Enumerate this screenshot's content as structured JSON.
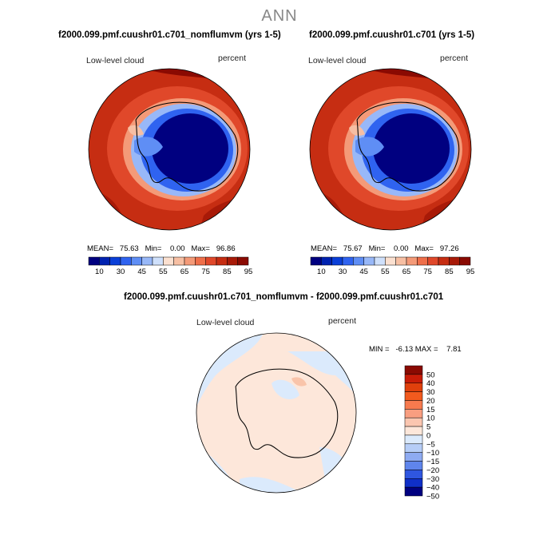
{
  "main_title": "ANN",
  "panels": [
    {
      "title": "f2000.099.pmf.cuushr01.c701_nomflumvm (yrs 1-5)",
      "variable": "Low-level cloud",
      "units": "percent",
      "stats_text": "MEAN=   75.63   Min=    0.00   Max=   96.86",
      "colorbar_labels": [
        "10",
        "30",
        "45",
        "55",
        "65",
        "75",
        "85",
        "95"
      ]
    },
    {
      "title": "f2000.099.pmf.cuushr01.c701 (yrs 1-5)",
      "variable": "Low-level cloud",
      "units": "percent",
      "stats_text": "MEAN=   75.67   Min=    0.00   Max=   97.26",
      "colorbar_labels": [
        "10",
        "30",
        "45",
        "55",
        "65",
        "75",
        "85",
        "95"
      ]
    }
  ],
  "diff_panel": {
    "title": "f2000.099.pmf.cuushr01.c701_nomflumvm - f2000.099.pmf.cuushr01.c701",
    "variable": "Low-level cloud",
    "units": "percent",
    "minmax_text": "MIN =   -6.13 MAX =    7.81",
    "colorbar_labels": [
      "50",
      "40",
      "30",
      "20",
      "15",
      "10",
      "5",
      "0",
      "−5",
      "−10",
      "−15",
      "−20",
      "−30",
      "−40",
      "−50"
    ]
  },
  "colors": {
    "field_scale": [
      "#000080",
      "#0022b0",
      "#0a3fd8",
      "#2f63f0",
      "#5f8ef5",
      "#98b8f8",
      "#cfe0fb",
      "#fbe0d0",
      "#f7bfa3",
      "#f49a78",
      "#ef6f4a",
      "#e0482a",
      "#c62d12",
      "#a81a08",
      "#8a0a02"
    ],
    "diff_scale": [
      "#8a0a02",
      "#c81c08",
      "#e0400c",
      "#f25a1e",
      "#f77a4e",
      "#f99e80",
      "#fbc6b0",
      "#fde7da",
      "#dbeafc",
      "#b6cdf7",
      "#8eabf2",
      "#5f85ec",
      "#2f56e0",
      "#0f2fc8",
      "#000080"
    ]
  }
}
